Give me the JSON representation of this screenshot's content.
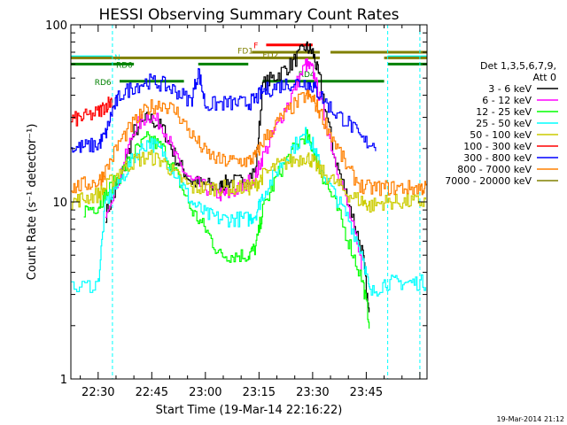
{
  "chart_data": {
    "type": "line",
    "title": "HESSI Observing Summary Count Rates",
    "xlabel": "Start Time (19-Mar-14 22:16:22)",
    "ylabel": "Count Rate (s⁻¹ detector⁻¹)",
    "yscale": "log",
    "ylim": [
      1,
      100
    ],
    "xlim_minutes": [
      22.37,
      122
    ],
    "x_tick_labels": [
      "22:30",
      "22:45",
      "23:00",
      "23:15",
      "23:30",
      "23:45"
    ],
    "x_tick_minutes": [
      30,
      45,
      60,
      75,
      90,
      105
    ],
    "y_tick_labels": [
      "1",
      "10",
      "100"
    ],
    "y_tick_values": [
      1,
      10,
      100
    ],
    "legend_header": [
      "Det 1,3,5,6,7,9,",
      "Att 0"
    ],
    "series": [
      {
        "name": "3 - 6 keV",
        "color": "#000000",
        "x": [
          32,
          36,
          40,
          44,
          48,
          52,
          56,
          60,
          64,
          66,
          70,
          74,
          76,
          80,
          84,
          88,
          90,
          92,
          96,
          100,
          104,
          106,
          110,
          114,
          118,
          122
        ],
        "y": [
          8.5,
          13,
          25,
          30,
          26,
          17,
          13,
          12.5,
          12,
          13,
          13,
          15,
          46,
          52,
          60,
          75,
          70,
          48,
          18,
          10,
          5,
          2,
          null,
          null,
          null,
          null
        ]
      },
      {
        "name": "6 - 12 keV",
        "color": "#ff00ff",
        "x": [
          32,
          36,
          40,
          44,
          48,
          52,
          56,
          60,
          64,
          66,
          70,
          74,
          76,
          80,
          84,
          88,
          90,
          92,
          96,
          100,
          104
        ],
        "y": [
          9,
          14,
          26,
          31,
          27,
          17,
          13,
          12,
          11,
          11,
          12,
          14,
          18,
          27,
          40,
          60,
          55,
          38,
          18,
          9,
          4
        ]
      },
      {
        "name": "12 - 25 keV",
        "color": "#00ff00",
        "x": [
          26,
          30,
          32,
          36,
          40,
          44,
          48,
          52,
          56,
          60,
          64,
          68,
          72,
          74,
          76,
          80,
          84,
          88,
          90,
          92,
          96,
          100,
          104,
          106
        ],
        "y": [
          9,
          9.5,
          11,
          14,
          19,
          23,
          20,
          14,
          9,
          7,
          5,
          5,
          5,
          5.5,
          9,
          14,
          19,
          24,
          20,
          15,
          10,
          6,
          3.5,
          2
        ]
      },
      {
        "name": "25 - 50 keV",
        "color": "#00ffff",
        "x": [
          22.5,
          30,
          32,
          36,
          40,
          44,
          48,
          52,
          56,
          60,
          64,
          68,
          72,
          74,
          76,
          80,
          84,
          88,
          90,
          92,
          96,
          100,
          104,
          106,
          110,
          114,
          118,
          122
        ],
        "y": [
          3.2,
          3.5,
          10,
          13,
          18,
          22,
          19,
          14,
          10,
          8.5,
          8,
          8,
          8,
          8.5,
          11,
          15,
          20,
          24,
          21,
          16,
          11,
          8,
          5,
          3,
          3.5,
          3.5,
          3.5,
          3.5
        ]
      },
      {
        "name": "50 - 100 keV",
        "color": "#cccc00",
        "x": [
          22.5,
          26,
          30,
          32,
          36,
          40,
          44,
          48,
          52,
          56,
          60,
          64,
          68,
          72,
          74,
          76,
          80,
          84,
          88,
          90,
          92,
          96,
          100,
          104,
          106,
          110,
          114,
          118,
          122
        ],
        "y": [
          10,
          10.5,
          11,
          12,
          15,
          17,
          18,
          17,
          14,
          12,
          12,
          12,
          12,
          12,
          12.5,
          14,
          16,
          17,
          18,
          17,
          15,
          13,
          11,
          10,
          9.5,
          10,
          10,
          10,
          10
        ]
      },
      {
        "name": "100 - 300 keV",
        "color": "#ff0000",
        "x": [
          22.5,
          26,
          30,
          32,
          34
        ],
        "y": [
          29,
          30,
          32,
          35,
          38
        ]
      },
      {
        "name": "300 - 800 keV",
        "color": "#0000ff",
        "x": [
          22.5,
          26,
          30,
          32,
          34,
          36,
          40,
          44,
          48,
          52,
          56,
          58,
          60,
          64,
          68,
          72,
          74,
          76,
          80,
          84,
          88,
          90,
          92,
          96,
          100,
          104,
          108
        ],
        "y": [
          20,
          20.5,
          21,
          24,
          33,
          40,
          45,
          48,
          46,
          42,
          37,
          55,
          35,
          36,
          36,
          36,
          38,
          42,
          45,
          47,
          47,
          45,
          40,
          32,
          28,
          22,
          21
        ]
      },
      {
        "name": "800 - 7000 keV",
        "color": "#ff8000",
        "x": [
          22.5,
          26,
          30,
          32,
          36,
          40,
          44,
          48,
          52,
          56,
          60,
          64,
          68,
          72,
          74,
          76,
          80,
          84,
          88,
          90,
          92,
          96,
          100,
          104,
          108,
          112,
          116,
          120,
          122
        ],
        "y": [
          12,
          12.5,
          13,
          15,
          22,
          28,
          34,
          36,
          32,
          24,
          19,
          17,
          17,
          17,
          18,
          22,
          28,
          34,
          40,
          38,
          32,
          22,
          15,
          12,
          12,
          12,
          12,
          12,
          12
        ]
      },
      {
        "name": "7000 - 20000 keV",
        "color": "#808000",
        "x": [
          22.5,
          30,
          32,
          36,
          40,
          44,
          48,
          52,
          56,
          60,
          64,
          68,
          72,
          76,
          80,
          84,
          88,
          90,
          92,
          96,
          100,
          104,
          106,
          108,
          112,
          116,
          120,
          122
        ],
        "y": [
          null,
          null,
          null,
          null,
          null,
          null,
          null,
          null,
          null,
          null,
          null,
          null,
          null,
          null,
          null,
          null,
          null,
          null,
          null,
          null,
          null,
          null,
          null,
          null,
          null,
          null,
          null,
          null
        ]
      }
    ],
    "annotations": [
      {
        "label": "N",
        "color": "#00ffff"
      },
      {
        "label": "F",
        "color": "#ff0000"
      },
      {
        "label": "FD1",
        "color": "#808000"
      },
      {
        "label": "FD2",
        "color": "#808000"
      },
      {
        "label": "RD0",
        "color": "#008000"
      },
      {
        "label": "RD6",
        "color": "#008000"
      },
      {
        "label": "RD4",
        "color": "#008000"
      }
    ],
    "grid": false,
    "legend_placement": "right"
  },
  "footer_date": "19-Mar-2014 21:12"
}
